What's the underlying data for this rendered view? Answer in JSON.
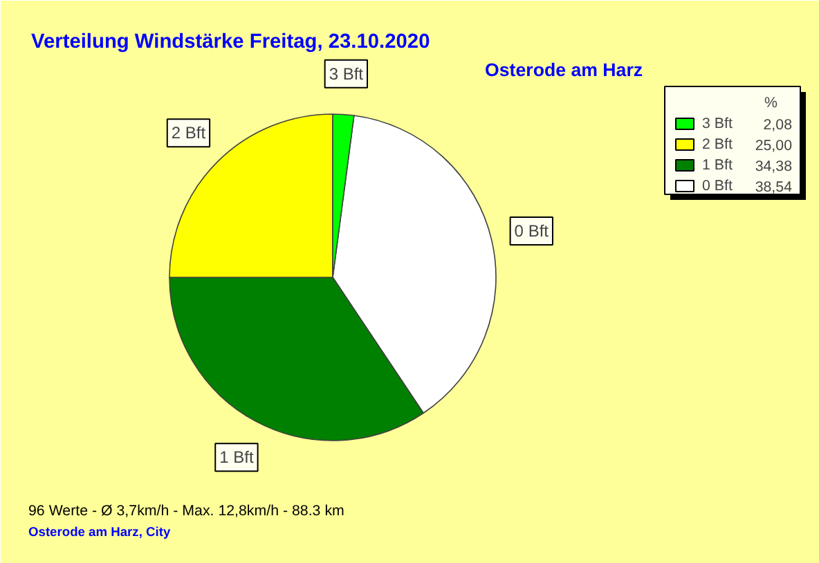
{
  "chart_data": {
    "type": "pie",
    "title": "Verteilung Windstärke  Freitag, 23.10.2020",
    "subtitle": "Osterode am Harz",
    "legend_title": "%",
    "categories": [
      "0 Bft",
      "1 Bft",
      "2 Bft",
      "3 Bft"
    ],
    "values": [
      38.54,
      34.38,
      25.0,
      2.08
    ],
    "value_labels": [
      "38,54",
      "34,38",
      "25,00",
      "2,08"
    ],
    "colors": [
      "#ffffff",
      "#008000",
      "#ffff00",
      "#00ff00"
    ],
    "legend": "top right",
    "annotations": [
      "96 Werte   -   Ø 3,7km/h  -  Max. 12,8km/h   -   88.3 km",
      "Osterode am Harz, City"
    ]
  }
}
